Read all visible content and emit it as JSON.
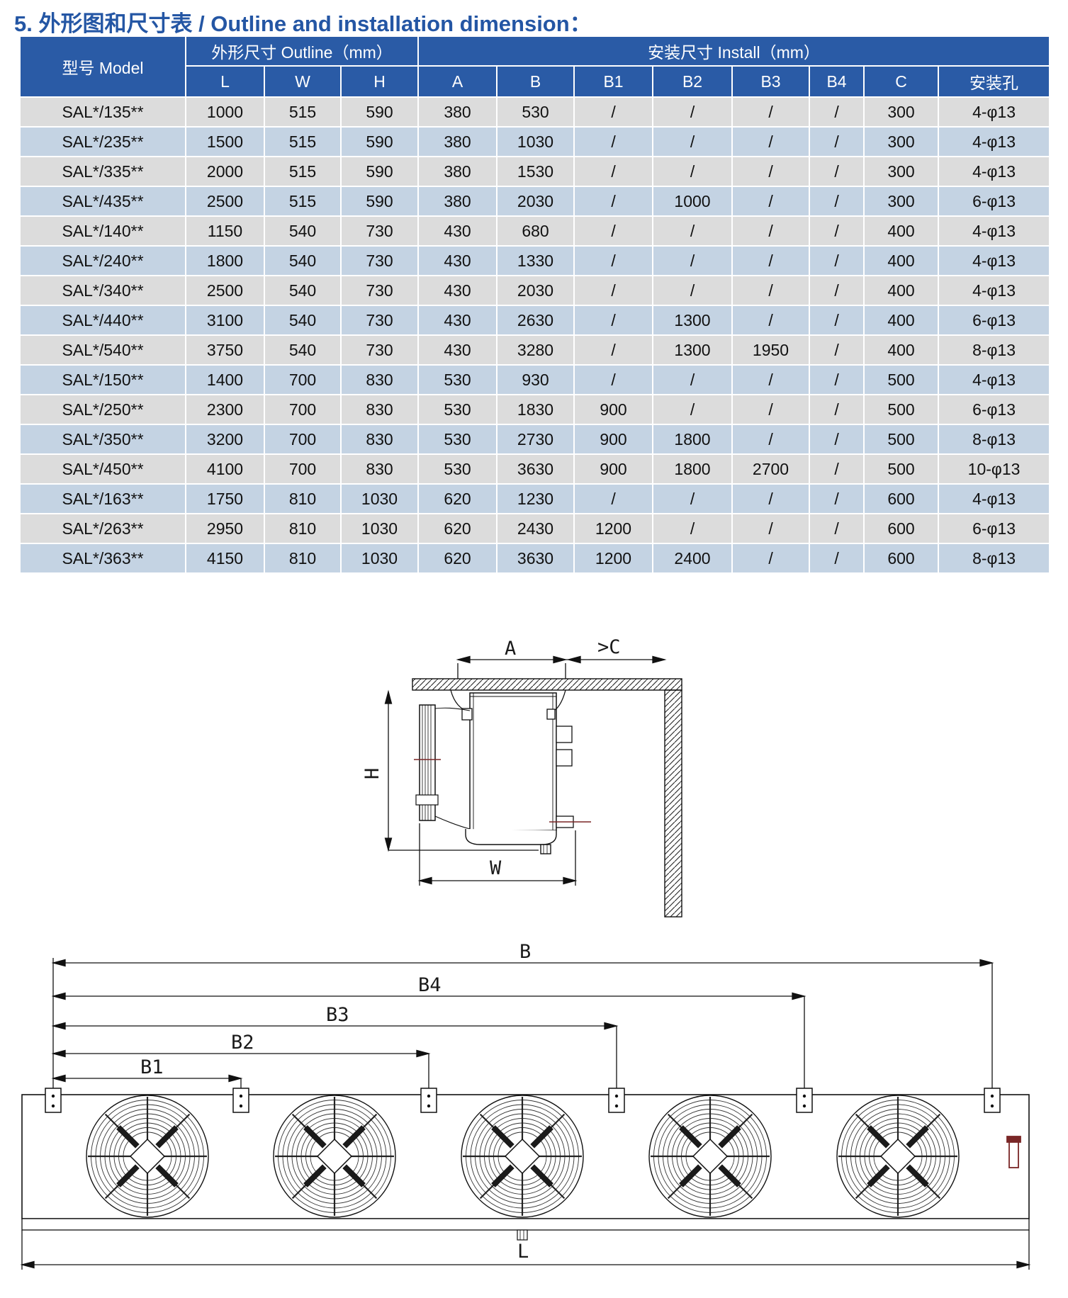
{
  "title": "5. 外形图和尺寸表 / Outline and installation dimension：",
  "table": {
    "header": {
      "model": "型号 Model",
      "outline_group": "外形尺寸 Outline（mm）",
      "install_group": "安装尺寸 Install（mm）",
      "outline_cols": [
        "L",
        "W",
        "H"
      ],
      "install_cols": [
        "A",
        "B",
        "B1",
        "B2",
        "B3",
        "B4",
        "C",
        "安装孔"
      ]
    },
    "rows": [
      {
        "model": "SAL*/135**",
        "values": [
          "1000",
          "515",
          "590",
          "380",
          "530",
          "/",
          "/",
          "/",
          "/",
          "300",
          "4-φ13"
        ]
      },
      {
        "model": "SAL*/235**",
        "values": [
          "1500",
          "515",
          "590",
          "380",
          "1030",
          "/",
          "/",
          "/",
          "/",
          "300",
          "4-φ13"
        ]
      },
      {
        "model": "SAL*/335**",
        "values": [
          "2000",
          "515",
          "590",
          "380",
          "1530",
          "/",
          "/",
          "/",
          "/",
          "300",
          "4-φ13"
        ]
      },
      {
        "model": "SAL*/435**",
        "values": [
          "2500",
          "515",
          "590",
          "380",
          "2030",
          "/",
          "1000",
          "/",
          "/",
          "300",
          "6-φ13"
        ]
      },
      {
        "model": "SAL*/140**",
        "values": [
          "1150",
          "540",
          "730",
          "430",
          "680",
          "/",
          "/",
          "/",
          "/",
          "400",
          "4-φ13"
        ]
      },
      {
        "model": "SAL*/240**",
        "values": [
          "1800",
          "540",
          "730",
          "430",
          "1330",
          "/",
          "/",
          "/",
          "/",
          "400",
          "4-φ13"
        ]
      },
      {
        "model": "SAL*/340**",
        "values": [
          "2500",
          "540",
          "730",
          "430",
          "2030",
          "/",
          "/",
          "/",
          "/",
          "400",
          "4-φ13"
        ]
      },
      {
        "model": "SAL*/440**",
        "values": [
          "3100",
          "540",
          "730",
          "430",
          "2630",
          "/",
          "1300",
          "/",
          "/",
          "400",
          "6-φ13"
        ]
      },
      {
        "model": "SAL*/540**",
        "values": [
          "3750",
          "540",
          "730",
          "430",
          "3280",
          "/",
          "1300",
          "1950",
          "/",
          "400",
          "8-φ13"
        ]
      },
      {
        "model": "SAL*/150**",
        "values": [
          "1400",
          "700",
          "830",
          "530",
          "930",
          "/",
          "/",
          "/",
          "/",
          "500",
          "4-φ13"
        ]
      },
      {
        "model": "SAL*/250**",
        "values": [
          "2300",
          "700",
          "830",
          "530",
          "1830",
          "900",
          "/",
          "/",
          "/",
          "500",
          "6-φ13"
        ]
      },
      {
        "model": "SAL*/350**",
        "values": [
          "3200",
          "700",
          "830",
          "530",
          "2730",
          "900",
          "1800",
          "/",
          "/",
          "500",
          "8-φ13"
        ]
      },
      {
        "model": "SAL*/450**",
        "values": [
          "4100",
          "700",
          "830",
          "530",
          "3630",
          "900",
          "1800",
          "2700",
          "/",
          "500",
          "10-φ13"
        ]
      },
      {
        "model": "SAL*/163**",
        "values": [
          "1750",
          "810",
          "1030",
          "620",
          "1230",
          "/",
          "/",
          "/",
          "/",
          "600",
          "4-φ13"
        ]
      },
      {
        "model": "SAL*/263**",
        "values": [
          "2950",
          "810",
          "1030",
          "620",
          "2430",
          "1200",
          "/",
          "/",
          "/",
          "600",
          "6-φ13"
        ]
      },
      {
        "model": "SAL*/363**",
        "values": [
          "4150",
          "810",
          "1030",
          "620",
          "3630",
          "1200",
          "2400",
          "/",
          "/",
          "600",
          "8-φ13"
        ]
      }
    ]
  },
  "side_view": {
    "dim_a": "A",
    "dim_c": ">C",
    "dim_h": "H",
    "dim_w": "W"
  },
  "front_view": {
    "dim_b": "B",
    "dim_b4": "B4",
    "dim_b3": "B3",
    "dim_b2": "B2",
    "dim_b1": "B1",
    "dim_l": "L"
  },
  "colors": {
    "header_bg": "#2a5ba6",
    "row_gray": "#dcdcdc",
    "row_blue": "#c4d3e3",
    "title_blue": "#2456a4",
    "drawing_red": "#7a2727"
  }
}
